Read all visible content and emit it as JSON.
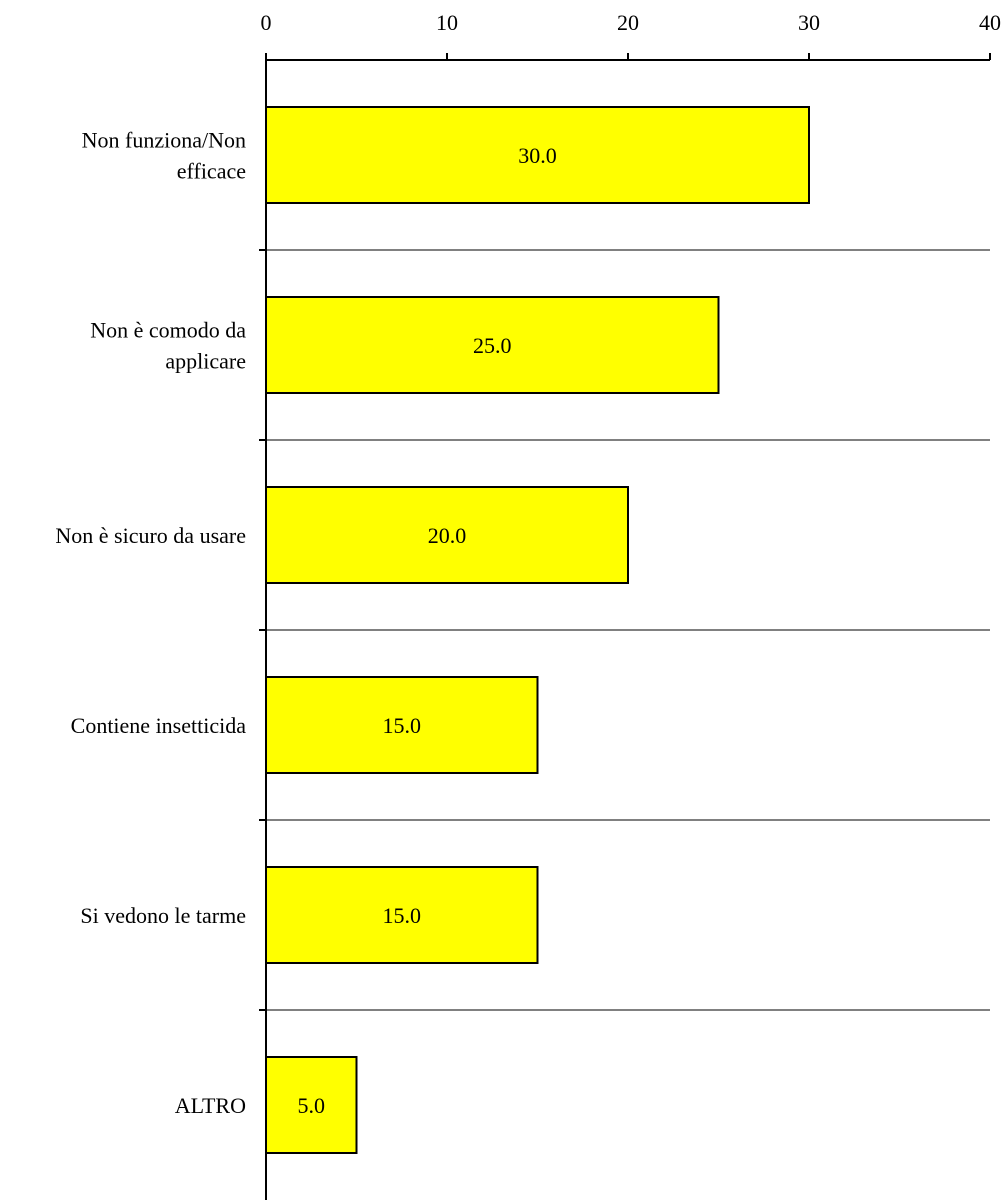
{
  "chart_data": {
    "type": "bar",
    "orientation": "horizontal",
    "title": "",
    "xlabel": "",
    "ylabel": "",
    "xlim": [
      0,
      40
    ],
    "x_ticks": [
      0,
      10,
      20,
      30,
      40
    ],
    "x_tick_labels": [
      "0",
      "10",
      "20",
      "30",
      "40"
    ],
    "x_axis_position": "top",
    "grid": "horizontal separators between categories",
    "legend": "none",
    "categories": [
      [
        "Non funziona/Non",
        "efficace"
      ],
      [
        "Non è comodo da",
        "applicare"
      ],
      [
        "Non è sicuro da usare"
      ],
      [
        "Contiene insetticida"
      ],
      [
        "Si vedono le tarme"
      ],
      [
        "ALTRO"
      ]
    ],
    "values": [
      30,
      25,
      20,
      15,
      15,
      5
    ],
    "value_labels": [
      "30.0",
      "25.0",
      "20.0",
      "15.0",
      "15.0",
      "5.0"
    ],
    "colors": {
      "bar_fill": "#ffff00",
      "bar_stroke": "#000000",
      "grid": "#000000"
    }
  }
}
